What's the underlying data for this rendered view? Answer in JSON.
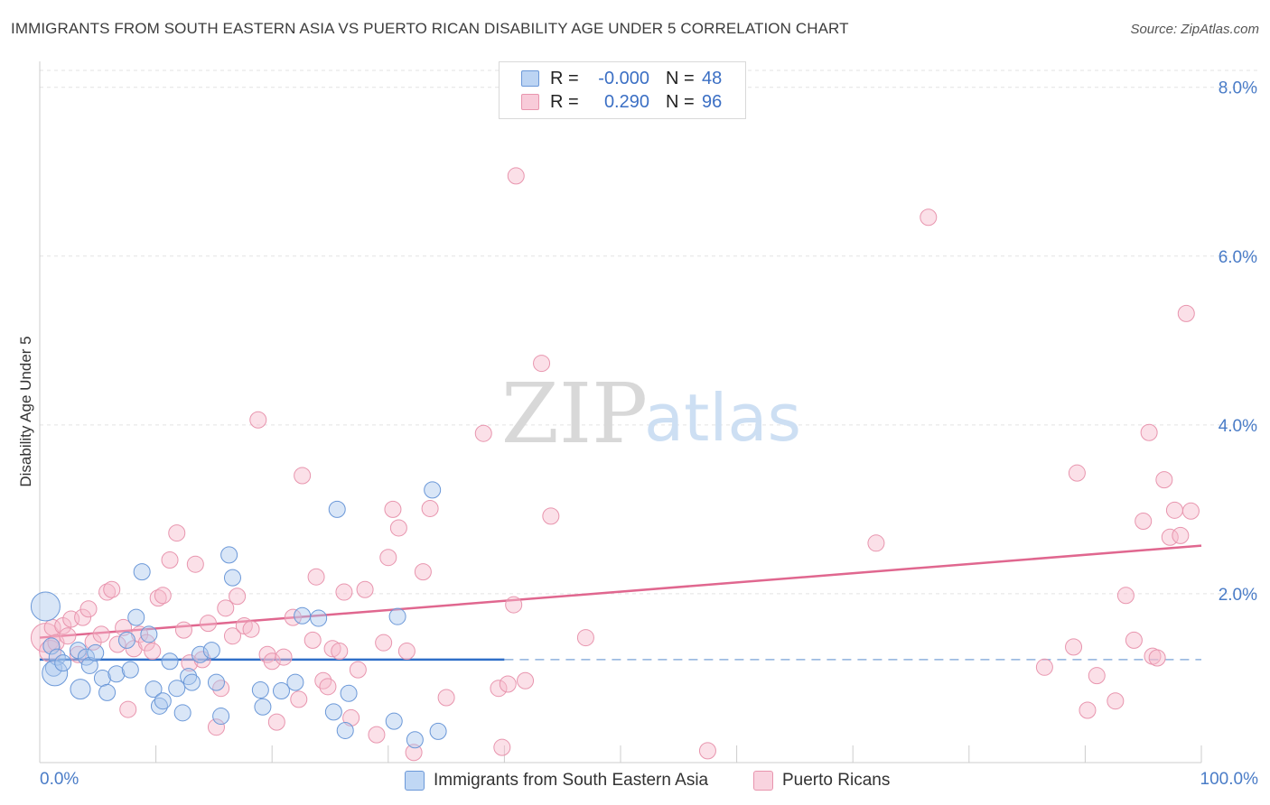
{
  "title": "IMMIGRANTS FROM SOUTH EASTERN ASIA VS PUERTO RICAN DISABILITY AGE UNDER 5 CORRELATION CHART",
  "source": "Source: ZipAtlas.com",
  "watermark": {
    "zip": "ZIP",
    "atlas": "atlas"
  },
  "legend": {
    "rows": [
      {
        "r_label": "R =",
        "r_value": "-0.000",
        "n_label": "N =",
        "n_value": "48",
        "color": "#9fc3ec",
        "border": "#5b8fd6"
      },
      {
        "r_label": "R =",
        "r_value": "0.290",
        "n_label": "N =",
        "n_value": "96",
        "color": "#f6bfd0",
        "border": "#e78aa8"
      }
    ]
  },
  "bottom_legend": [
    {
      "label": "Immigrants from South Eastern Asia",
      "color": "#c0d7f4",
      "border": "#6b98d8"
    },
    {
      "label": "Puerto Ricans",
      "color": "#f9d3df",
      "border": "#e895ae"
    }
  ],
  "chart_data": {
    "type": "scatter",
    "title": "IMMIGRANTS FROM SOUTH EASTERN ASIA VS PUERTO RICAN DISABILITY AGE UNDER 5 CORRELATION CHART",
    "xlabel": "",
    "ylabel": "Disability Age Under 5",
    "xlim": [
      0,
      100
    ],
    "ylim": [
      0,
      8.2
    ],
    "x_tick_labels": [
      "0.0%",
      "100.0%"
    ],
    "y_ticks": [
      2,
      4,
      6,
      8
    ],
    "y_tick_labels": [
      "2.0%",
      "4.0%",
      "6.0%",
      "8.0%"
    ],
    "grid": true,
    "legend_position": "top-center",
    "colors": {
      "blue": "#5b8fd6",
      "blue_fill": "#a9c8ee",
      "pink": "#e77fa3",
      "pink_fill": "#f5bccd",
      "blue_line": "#2f6fc8",
      "pink_line": "#e0678f"
    },
    "series": [
      {
        "name": "Immigrants from South Eastern Asia",
        "color": "#5b8fd6",
        "trend": {
          "x": [
            0,
            40
          ],
          "y": [
            1.22,
            1.22
          ],
          "dashed_to": 100
        },
        "points": [
          [
            0.5,
            1.85
          ],
          [
            1.0,
            1.38
          ],
          [
            1.2,
            1.12
          ],
          [
            1.5,
            1.25
          ],
          [
            1.3,
            1.06
          ],
          [
            2.0,
            1.18
          ],
          [
            3.3,
            1.33
          ],
          [
            3.5,
            0.87
          ],
          [
            4.0,
            1.25
          ],
          [
            4.3,
            1.15
          ],
          [
            4.8,
            1.3
          ],
          [
            5.4,
            1.0
          ],
          [
            5.8,
            0.83
          ],
          [
            6.6,
            1.05
          ],
          [
            7.5,
            1.45
          ],
          [
            7.8,
            1.1
          ],
          [
            8.3,
            1.72
          ],
          [
            8.8,
            2.26
          ],
          [
            9.4,
            1.52
          ],
          [
            9.8,
            0.87
          ],
          [
            10.3,
            0.67
          ],
          [
            10.6,
            0.73
          ],
          [
            11.2,
            1.2
          ],
          [
            11.8,
            0.88
          ],
          [
            12.3,
            0.59
          ],
          [
            12.8,
            1.02
          ],
          [
            13.1,
            0.95
          ],
          [
            13.8,
            1.28
          ],
          [
            14.8,
            1.33
          ],
          [
            15.2,
            0.95
          ],
          [
            15.6,
            0.55
          ],
          [
            16.3,
            2.46
          ],
          [
            16.6,
            2.19
          ],
          [
            19.0,
            0.86
          ],
          [
            19.2,
            0.66
          ],
          [
            20.8,
            0.85
          ],
          [
            22.0,
            0.95
          ],
          [
            22.6,
            1.74
          ],
          [
            24.0,
            1.71
          ],
          [
            25.3,
            0.6
          ],
          [
            25.6,
            3.0
          ],
          [
            26.3,
            0.38
          ],
          [
            26.6,
            0.82
          ],
          [
            30.5,
            0.49
          ],
          [
            30.8,
            1.73
          ],
          [
            32.3,
            0.27
          ],
          [
            33.8,
            3.23
          ],
          [
            34.3,
            0.37
          ]
        ]
      },
      {
        "name": "Puerto Ricans",
        "color": "#e77fa3",
        "trend": {
          "x": [
            0,
            100
          ],
          "y": [
            1.48,
            2.57
          ]
        },
        "points": [
          [
            0.5,
            1.48
          ],
          [
            0.9,
            1.32
          ],
          [
            1.1,
            1.6
          ],
          [
            1.4,
            1.42
          ],
          [
            2.0,
            1.62
          ],
          [
            2.4,
            1.5
          ],
          [
            2.7,
            1.7
          ],
          [
            3.3,
            1.28
          ],
          [
            3.7,
            1.72
          ],
          [
            4.2,
            1.82
          ],
          [
            4.6,
            1.43
          ],
          [
            5.3,
            1.52
          ],
          [
            5.8,
            2.02
          ],
          [
            6.2,
            2.05
          ],
          [
            6.7,
            1.4
          ],
          [
            7.2,
            1.6
          ],
          [
            7.6,
            0.63
          ],
          [
            8.1,
            1.35
          ],
          [
            8.6,
            1.52
          ],
          [
            9.2,
            1.42
          ],
          [
            9.7,
            1.32
          ],
          [
            10.2,
            1.95
          ],
          [
            10.6,
            1.98
          ],
          [
            11.2,
            2.4
          ],
          [
            11.8,
            2.72
          ],
          [
            12.4,
            1.57
          ],
          [
            12.9,
            1.18
          ],
          [
            13.4,
            2.35
          ],
          [
            14.0,
            1.22
          ],
          [
            14.5,
            1.65
          ],
          [
            15.2,
            0.42
          ],
          [
            15.6,
            0.88
          ],
          [
            16.0,
            1.83
          ],
          [
            16.6,
            1.5
          ],
          [
            17.0,
            1.97
          ],
          [
            17.6,
            1.62
          ],
          [
            18.2,
            1.58
          ],
          [
            18.8,
            4.06
          ],
          [
            19.6,
            1.28
          ],
          [
            20.0,
            1.2
          ],
          [
            20.4,
            0.48
          ],
          [
            21.0,
            1.25
          ],
          [
            21.8,
            1.72
          ],
          [
            22.3,
            0.75
          ],
          [
            22.6,
            3.4
          ],
          [
            23.5,
            1.45
          ],
          [
            23.8,
            2.2
          ],
          [
            24.4,
            0.97
          ],
          [
            24.8,
            0.9
          ],
          [
            25.2,
            1.35
          ],
          [
            25.8,
            1.32
          ],
          [
            26.2,
            2.02
          ],
          [
            26.8,
            0.53
          ],
          [
            27.4,
            1.1
          ],
          [
            28.0,
            2.05
          ],
          [
            29.0,
            0.33
          ],
          [
            29.6,
            1.42
          ],
          [
            30.0,
            2.43
          ],
          [
            30.4,
            3.0
          ],
          [
            30.9,
            2.78
          ],
          [
            31.6,
            1.32
          ],
          [
            32.2,
            0.12
          ],
          [
            33.0,
            2.26
          ],
          [
            33.6,
            3.01
          ],
          [
            35.0,
            0.77
          ],
          [
            38.2,
            3.9
          ],
          [
            39.5,
            0.88
          ],
          [
            39.8,
            0.18
          ],
          [
            40.3,
            0.93
          ],
          [
            40.8,
            1.87
          ],
          [
            41.0,
            6.95
          ],
          [
            41.8,
            0.97
          ],
          [
            43.2,
            4.73
          ],
          [
            44.0,
            2.92
          ],
          [
            47.0,
            1.48
          ],
          [
            57.5,
            0.14
          ],
          [
            72.0,
            2.6
          ],
          [
            76.5,
            6.46
          ],
          [
            86.5,
            1.13
          ],
          [
            89.0,
            1.37
          ],
          [
            89.3,
            3.43
          ],
          [
            90.2,
            0.62
          ],
          [
            91.0,
            1.03
          ],
          [
            92.6,
            0.73
          ],
          [
            93.5,
            1.98
          ],
          [
            94.2,
            1.45
          ],
          [
            95.0,
            2.86
          ],
          [
            95.5,
            3.91
          ],
          [
            95.8,
            1.26
          ],
          [
            96.2,
            1.24
          ],
          [
            96.8,
            3.35
          ],
          [
            97.3,
            2.67
          ],
          [
            97.7,
            2.99
          ],
          [
            98.2,
            2.69
          ],
          [
            98.7,
            5.32
          ],
          [
            99.1,
            2.98
          ]
        ]
      }
    ]
  }
}
